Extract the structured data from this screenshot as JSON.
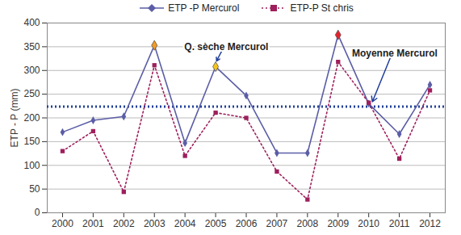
{
  "chart_data": {
    "type": "line",
    "y_label": "ETP - P (mm)",
    "x": [
      2000,
      2001,
      2002,
      2003,
      2004,
      2005,
      2006,
      2007,
      2008,
      2009,
      2010,
      2011,
      2012
    ],
    "series": [
      {
        "name": "ETP -P Mercurol",
        "color": "#5b5ea6",
        "marker": "diamond",
        "line_style": "solid",
        "values": [
          170,
          195,
          203,
          353,
          147,
          308,
          247,
          126,
          126,
          375,
          230,
          166,
          270
        ],
        "colors": [
          "#5b5ea6",
          "#5b5ea6",
          "#5b5ea6",
          "#f59a23",
          "#5b5ea6",
          "#f5c518",
          "#5b5ea6",
          "#5b5ea6",
          "#5b5ea6",
          "#e8202a",
          "#5b5ea6",
          "#5b5ea6",
          "#5b5ea6"
        ]
      },
      {
        "name": "ETP-P St chris",
        "color": "#9e1f5c",
        "marker": "square",
        "line_style": "dotted",
        "values": [
          130,
          172,
          44,
          311,
          120,
          211,
          200,
          87,
          28,
          318,
          232,
          114,
          258
        ]
      }
    ],
    "hlines": [
      {
        "y": 224,
        "color": "#1f3f99",
        "line_style": "dotted"
      }
    ],
    "annotations": [
      {
        "text": "Q. sèche Mercurol",
        "x": 2005,
        "y": 308
      },
      {
        "text": "Moyenne Mercurol",
        "x": 2010,
        "y": 224
      }
    ],
    "xlim": [
      1999.5,
      2012.5
    ],
    "xticks": [
      2000,
      2001,
      2002,
      2003,
      2004,
      2005,
      2006,
      2007,
      2008,
      2009,
      2010,
      2011,
      2012
    ],
    "ylim": [
      0,
      400
    ],
    "yticks": [
      0,
      50,
      100,
      150,
      200,
      250,
      300,
      350,
      400
    ],
    "grid": true,
    "legend": "top"
  }
}
